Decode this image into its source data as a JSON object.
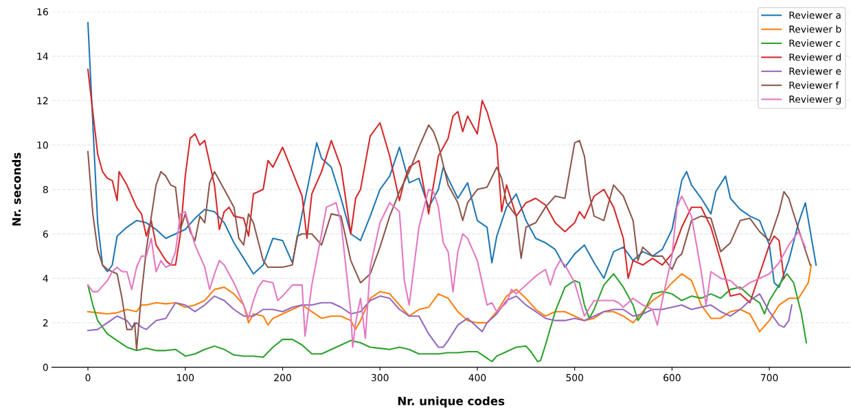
{
  "chart_data": {
    "type": "line",
    "xlabel": "Nr. unique codes",
    "ylabel": "Nr. seconds",
    "xlim": [
      -37,
      783
    ],
    "ylim": [
      0,
      16
    ],
    "xticks": [
      0,
      100,
      200,
      300,
      400,
      500,
      600,
      700
    ],
    "yticks": [
      0,
      2,
      4,
      6,
      8,
      10,
      12,
      14,
      16
    ],
    "grid": "y",
    "legend": "top right",
    "line_style": "solid",
    "series": [
      {
        "name": "Reviewer a",
        "color": "#1f77b4",
        "x": [
          0,
          5,
          10,
          15,
          20,
          25,
          30,
          40,
          50,
          60,
          70,
          80,
          90,
          100,
          110,
          120,
          130,
          140,
          150,
          160,
          170,
          180,
          190,
          200,
          210,
          220,
          230,
          235,
          240,
          250,
          260,
          270,
          280,
          290,
          300,
          310,
          320,
          330,
          340,
          350,
          360,
          365,
          370,
          380,
          390,
          400,
          410,
          415,
          420,
          430,
          440,
          450,
          460,
          470,
          480,
          490,
          500,
          510,
          520,
          530,
          540,
          550,
          560,
          570,
          580,
          590,
          600,
          610,
          615,
          620,
          630,
          640,
          645,
          655,
          660,
          670,
          680,
          690,
          700,
          705,
          710,
          720,
          730,
          737,
          748
        ],
        "values": [
          15.5,
          11,
          6.5,
          4.6,
          4.3,
          4.6,
          5.9,
          6.3,
          6.6,
          6.5,
          6.2,
          5.8,
          6.0,
          6.2,
          6.7,
          7.1,
          7.0,
          6.5,
          5.6,
          4.9,
          4.2,
          4.6,
          5.8,
          5.7,
          4.7,
          6.9,
          9.0,
          10.1,
          9.4,
          9.0,
          7.6,
          6.0,
          5.7,
          6.8,
          8.0,
          8.6,
          9.9,
          8.3,
          8.5,
          7.2,
          8.0,
          9.0,
          8.5,
          7.6,
          8.3,
          6.6,
          6.3,
          4.7,
          5.9,
          7.2,
          7.8,
          6.6,
          5.8,
          5.6,
          5.3,
          4.5,
          5.1,
          5.5,
          4.7,
          4.0,
          5.2,
          5.4,
          4.8,
          5.2,
          5.0,
          5.3,
          6.2,
          8.4,
          8.8,
          8.2,
          7.6,
          6.9,
          7.9,
          8.6,
          7.6,
          7.1,
          6.8,
          6.6,
          5.5,
          3.8,
          3.6,
          4.8,
          6.5,
          7.4,
          4.6
        ]
      },
      {
        "name": "Reviewer b",
        "color": "#ff7f0e",
        "x": [
          0,
          10,
          20,
          30,
          40,
          50,
          55,
          60,
          70,
          80,
          90,
          100,
          110,
          120,
          130,
          140,
          150,
          160,
          165,
          170,
          180,
          185,
          190,
          200,
          210,
          220,
          230,
          240,
          250,
          260,
          270,
          275,
          280,
          290,
          300,
          310,
          320,
          330,
          340,
          350,
          360,
          370,
          380,
          390,
          400,
          410,
          420,
          430,
          440,
          450,
          460,
          470,
          480,
          490,
          500,
          510,
          520,
          530,
          540,
          550,
          560,
          570,
          580,
          590,
          600,
          610,
          620,
          630,
          640,
          650,
          660,
          670,
          680,
          690,
          700,
          710,
          720,
          730,
          740,
          743
        ],
        "values": [
          2.5,
          2.45,
          2.4,
          2.45,
          2.6,
          2.5,
          2.8,
          2.8,
          2.9,
          2.85,
          2.9,
          2.7,
          2.8,
          3.0,
          3.5,
          3.6,
          3.3,
          2.8,
          2.0,
          2.4,
          2.3,
          1.9,
          2.2,
          2.4,
          2.6,
          2.8,
          2.5,
          2.2,
          2.3,
          2.3,
          2.1,
          1.7,
          2.1,
          3.1,
          3.4,
          3.3,
          2.8,
          2.3,
          2.6,
          2.7,
          3.3,
          3.1,
          2.5,
          2.1,
          2.0,
          2.0,
          2.5,
          3.2,
          3.5,
          3.1,
          2.6,
          2.3,
          2.5,
          2.5,
          2.3,
          2.1,
          2.2,
          2.5,
          2.5,
          2.3,
          2.0,
          2.5,
          3.0,
          3.3,
          3.8,
          4.2,
          3.9,
          2.8,
          2.2,
          2.2,
          2.5,
          2.6,
          2.4,
          1.6,
          2.1,
          2.8,
          3.1,
          3.1,
          3.8,
          4.6
        ]
      },
      {
        "name": "Reviewer c",
        "color": "#2ca02c",
        "x": [
          0,
          5,
          10,
          20,
          30,
          40,
          50,
          60,
          70,
          80,
          90,
          100,
          110,
          120,
          130,
          140,
          150,
          160,
          170,
          180,
          190,
          200,
          210,
          220,
          230,
          240,
          250,
          260,
          270,
          280,
          290,
          300,
          310,
          320,
          330,
          340,
          350,
          360,
          370,
          380,
          390,
          400,
          410,
          415,
          420,
          430,
          440,
          450,
          455,
          462,
          465,
          470,
          480,
          490,
          500,
          505,
          510,
          515,
          520,
          530,
          540,
          550,
          560,
          565,
          570,
          580,
          590,
          600,
          610,
          620,
          630,
          640,
          650,
          660,
          670,
          680,
          690,
          695,
          700,
          710,
          718,
          725,
          733,
          738
        ],
        "values": [
          3.7,
          2.8,
          2.1,
          1.5,
          1.2,
          0.9,
          0.75,
          0.85,
          0.75,
          0.75,
          0.8,
          0.5,
          0.6,
          0.8,
          0.95,
          0.8,
          0.55,
          0.5,
          0.5,
          0.45,
          0.9,
          1.25,
          1.25,
          1.0,
          0.6,
          0.6,
          0.8,
          1.0,
          1.2,
          1.1,
          0.9,
          0.85,
          0.8,
          0.9,
          0.8,
          0.6,
          0.6,
          0.6,
          0.65,
          0.65,
          0.7,
          0.7,
          0.4,
          0.25,
          0.5,
          0.7,
          0.9,
          0.95,
          0.7,
          0.25,
          0.3,
          1.0,
          2.5,
          3.6,
          3.9,
          3.8,
          2.8,
          2.2,
          2.6,
          3.7,
          4.2,
          3.6,
          2.8,
          2.1,
          2.4,
          3.3,
          3.4,
          3.3,
          3.0,
          3.2,
          3.1,
          3.3,
          3.1,
          3.5,
          3.6,
          3.2,
          2.9,
          2.4,
          3.0,
          3.7,
          4.2,
          3.8,
          2.4,
          1.1
        ]
      },
      {
        "name": "Reviewer d",
        "color": "#d62728",
        "x": [
          0,
          5,
          10,
          15,
          20,
          25,
          30,
          32,
          40,
          50,
          55,
          60,
          65,
          70,
          80,
          85,
          90,
          95,
          100,
          105,
          110,
          115,
          120,
          130,
          135,
          140,
          145,
          150,
          160,
          165,
          170,
          180,
          185,
          190,
          200,
          210,
          220,
          225,
          230,
          240,
          250,
          260,
          270,
          275,
          280,
          290,
          300,
          310,
          320,
          325,
          330,
          340,
          350,
          360,
          370,
          375,
          380,
          385,
          390,
          400,
          405,
          410,
          420,
          425,
          430,
          440,
          450,
          460,
          470,
          480,
          490,
          500,
          505,
          510,
          520,
          530,
          540,
          550,
          555,
          560,
          570,
          580,
          590,
          600,
          610,
          620,
          630,
          640,
          650,
          660,
          670,
          680,
          690,
          700,
          705,
          710,
          715
        ],
        "values": [
          13.4,
          11.5,
          9.6,
          8.8,
          8.5,
          8.4,
          7.5,
          8.8,
          8.2,
          7.2,
          6.9,
          5.9,
          6.6,
          5.5,
          4.8,
          4.6,
          4.6,
          6.0,
          8.6,
          10.3,
          10.5,
          10.0,
          10.2,
          8.2,
          6.2,
          7.0,
          7.2,
          6.8,
          6.7,
          5.9,
          7.8,
          8.0,
          9.3,
          9.0,
          9.9,
          8.8,
          7.7,
          5.8,
          7.8,
          8.8,
          10.2,
          9.0,
          6.0,
          7.6,
          8.0,
          10.4,
          11.0,
          9.5,
          7.5,
          8.4,
          9.0,
          9.3,
          6.9,
          9.5,
          10.3,
          11.3,
          11.5,
          10.6,
          11.3,
          10.5,
          12.0,
          11.5,
          10.0,
          7.0,
          8.2,
          6.8,
          7.4,
          7.6,
          7.3,
          6.5,
          6.1,
          6.5,
          7.0,
          6.7,
          7.7,
          8.0,
          7.2,
          5.8,
          4.0,
          4.8,
          4.6,
          4.9,
          4.6,
          5.1,
          6.3,
          7.2,
          7.2,
          6.3,
          4.8,
          3.2,
          3.3,
          2.9,
          4.2,
          5.5,
          5.9,
          5.7,
          4.0
        ]
      },
      {
        "name": "Reviewer e",
        "color": "#9467bd",
        "x": [
          0,
          10,
          20,
          30,
          40,
          45,
          50,
          55,
          60,
          70,
          80,
          90,
          100,
          110,
          120,
          130,
          140,
          150,
          160,
          170,
          180,
          190,
          200,
          210,
          220,
          230,
          240,
          250,
          260,
          270,
          280,
          290,
          300,
          310,
          320,
          330,
          340,
          350,
          360,
          365,
          370,
          380,
          390,
          400,
          405,
          410,
          420,
          430,
          440,
          450,
          460,
          470,
          480,
          490,
          500,
          510,
          520,
          530,
          540,
          550,
          560,
          570,
          580,
          590,
          600,
          610,
          620,
          630,
          640,
          650,
          660,
          670,
          680,
          690,
          700,
          710,
          715,
          720,
          723
        ],
        "values": [
          1.65,
          1.7,
          2.0,
          2.3,
          2.1,
          1.8,
          2.0,
          1.8,
          1.7,
          2.1,
          2.2,
          2.9,
          2.8,
          2.5,
          2.8,
          3.2,
          3.0,
          2.6,
          2.3,
          2.3,
          2.6,
          2.6,
          2.5,
          2.7,
          2.8,
          2.8,
          2.9,
          2.9,
          2.7,
          2.4,
          2.5,
          3.0,
          3.2,
          3.1,
          2.6,
          2.3,
          2.3,
          1.5,
          0.9,
          0.9,
          1.2,
          1.9,
          2.2,
          1.8,
          1.6,
          2.0,
          2.4,
          3.0,
          3.2,
          2.8,
          2.5,
          2.2,
          2.1,
          2.1,
          2.2,
          2.1,
          2.3,
          2.5,
          2.6,
          2.6,
          2.3,
          2.4,
          2.6,
          2.6,
          2.7,
          2.8,
          2.6,
          2.7,
          2.8,
          2.5,
          2.3,
          2.6,
          3.0,
          3.3,
          2.5,
          1.9,
          1.8,
          2.1,
          2.8
        ]
      },
      {
        "name": "Reviewer f",
        "color": "#8c564b",
        "x": [
          0,
          5,
          10,
          15,
          20,
          25,
          30,
          35,
          40,
          45,
          48,
          50,
          55,
          60,
          70,
          75,
          80,
          85,
          90,
          95,
          100,
          105,
          110,
          115,
          120,
          125,
          130,
          140,
          150,
          155,
          160,
          165,
          170,
          180,
          185,
          190,
          200,
          210,
          215,
          220,
          230,
          240,
          250,
          260,
          270,
          280,
          290,
          300,
          310,
          320,
          330,
          340,
          350,
          355,
          360,
          370,
          380,
          385,
          390,
          400,
          410,
          420,
          425,
          430,
          440,
          445,
          450,
          460,
          470,
          480,
          490,
          500,
          505,
          510,
          515,
          520,
          530,
          540,
          550,
          560,
          565,
          570,
          580,
          590,
          600,
          605,
          610,
          620,
          630,
          640,
          650,
          660,
          670,
          680,
          690,
          700,
          710,
          715,
          720,
          730,
          742
        ],
        "values": [
          9.7,
          6.9,
          5.3,
          4.6,
          4.4,
          4.3,
          4.2,
          3.1,
          1.7,
          1.7,
          2.0,
          0.8,
          3.3,
          5.3,
          8.2,
          8.8,
          8.6,
          8.2,
          8.1,
          6.2,
          6.9,
          6.1,
          5.7,
          6.8,
          6.5,
          8.3,
          8.8,
          8.0,
          7.2,
          5.8,
          5.5,
          6.9,
          6.5,
          4.8,
          4.5,
          4.5,
          4.5,
          4.6,
          5.9,
          6.0,
          6.0,
          5.5,
          6.9,
          6.8,
          4.8,
          3.8,
          4.2,
          5.4,
          6.8,
          7.9,
          8.8,
          9.9,
          10.9,
          10.6,
          10.0,
          8.2,
          7.4,
          6.6,
          7.4,
          8.0,
          8.1,
          9.0,
          8.5,
          7.4,
          6.8,
          4.9,
          6.3,
          6.5,
          7.2,
          7.7,
          7.6,
          10.1,
          10.2,
          9.5,
          7.8,
          6.8,
          6.6,
          8.2,
          7.7,
          6.6,
          4.8,
          5.4,
          5.0,
          5.0,
          4.4,
          4.9,
          5.1,
          6.6,
          6.8,
          6.7,
          5.2,
          5.6,
          6.6,
          6.7,
          6.1,
          5.7,
          7.0,
          7.9,
          7.6,
          6.2,
          4.6
        ]
      },
      {
        "name": "Reviewer g",
        "color": "#e377c2",
        "x": [
          0,
          5,
          10,
          20,
          25,
          30,
          35,
          40,
          45,
          50,
          55,
          60,
          65,
          70,
          75,
          80,
          85,
          90,
          95,
          100,
          110,
          120,
          125,
          130,
          135,
          140,
          150,
          160,
          165,
          170,
          175,
          180,
          190,
          195,
          200,
          210,
          220,
          223,
          230,
          240,
          245,
          255,
          260,
          265,
          270,
          272,
          275,
          280,
          285,
          290,
          300,
          310,
          320,
          325,
          330,
          340,
          350,
          355,
          360,
          365,
          370,
          375,
          380,
          385,
          390,
          400,
          410,
          415,
          420,
          430,
          435,
          440,
          450,
          460,
          470,
          475,
          480,
          485,
          490,
          500,
          510,
          520,
          530,
          540,
          545,
          550,
          560,
          570,
          580,
          585,
          590,
          600,
          605,
          610,
          620,
          630,
          635,
          640,
          650,
          660,
          670,
          680,
          690,
          700,
          710,
          720,
          730,
          737
        ],
        "values": [
          3.7,
          3.4,
          3.4,
          3.9,
          4.3,
          4.5,
          4.3,
          4.3,
          3.5,
          4.5,
          5.0,
          5.0,
          5.8,
          4.3,
          4.8,
          4.5,
          4.6,
          5.2,
          6.9,
          7.0,
          5.5,
          4.5,
          3.5,
          4.2,
          4.8,
          4.6,
          3.8,
          2.8,
          2.2,
          3.0,
          3.6,
          3.9,
          3.8,
          3.0,
          3.2,
          3.7,
          3.7,
          1.4,
          3.7,
          6.0,
          7.2,
          7.4,
          6.5,
          4.5,
          2.5,
          0.9,
          2.0,
          3.1,
          1.3,
          4.5,
          6.5,
          7.4,
          7.0,
          3.9,
          2.8,
          6.3,
          8.0,
          7.9,
          7.2,
          5.6,
          5.2,
          3.4,
          5.2,
          6.0,
          5.8,
          4.8,
          2.8,
          2.9,
          2.5,
          2.9,
          3.5,
          3.3,
          3.7,
          4.1,
          4.4,
          3.7,
          4.4,
          4.8,
          4.6,
          3.8,
          2.3,
          3.0,
          3.0,
          3.0,
          2.9,
          2.7,
          3.1,
          2.8,
          2.6,
          1.9,
          3.0,
          5.0,
          7.2,
          7.7,
          6.8,
          4.3,
          2.8,
          4.3,
          4.0,
          3.9,
          3.5,
          3.8,
          4.0,
          4.2,
          4.7,
          5.5,
          6.1,
          5.4
        ]
      }
    ]
  }
}
